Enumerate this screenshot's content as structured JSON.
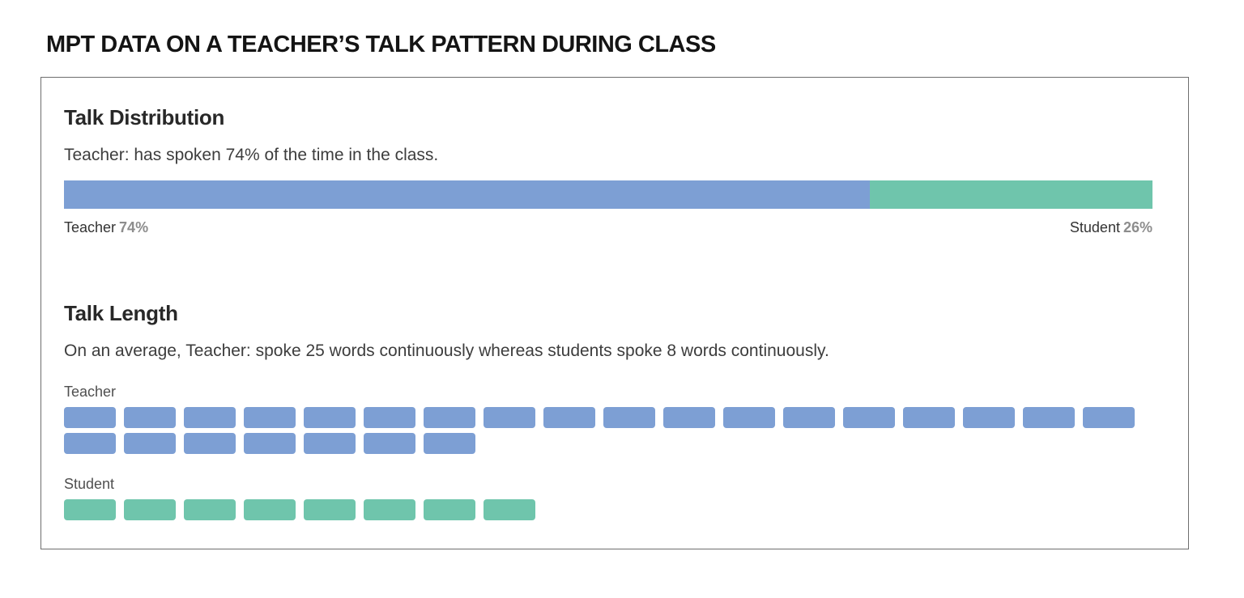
{
  "page_title": "MPT DATA ON A TEACHER’S TALK PATTERN DURING CLASS",
  "colors": {
    "teacher": "#7d9fd4",
    "student": "#6fc5ac",
    "heading_text": "#282828",
    "body_text": "#3d3d3d",
    "percent_text": "#8d8d8d",
    "card_border": "#6e6e6e"
  },
  "talk_distribution": {
    "heading": "Talk Distribution",
    "summary": "Teacher: has spoken 74% of the time in the class.",
    "teacher_label": "Teacher",
    "teacher_percent": "74%",
    "teacher_value": 74,
    "student_label": "Student",
    "student_percent": "26%",
    "student_value": 26
  },
  "talk_length": {
    "heading": "Talk Length",
    "summary": "On an average, Teacher: spoke 25 words continuously whereas students spoke 8 words continuously.",
    "teacher_label": "Teacher",
    "teacher_words": 25,
    "teacher_row1_count": 18,
    "teacher_row2_count": 7,
    "student_label": "Student",
    "student_words": 8,
    "student_row_count": 8
  },
  "chart_data": [
    {
      "type": "bar",
      "subtype": "horizontal-stacked-percentage",
      "title": "Talk Distribution",
      "categories": [
        "Teacher",
        "Student"
      ],
      "values": [
        74,
        26
      ],
      "unit": "%",
      "colors": [
        "#7d9fd4",
        "#6fc5ac"
      ],
      "annotations": [
        "Teacher 74%",
        "Student 26%"
      ],
      "xlim": [
        0,
        100
      ],
      "legend_position": "below-bar-ends"
    },
    {
      "type": "bar",
      "subtype": "unit-block-waffle",
      "title": "Talk Length",
      "categories": [
        "Teacher",
        "Student"
      ],
      "values": [
        25,
        8
      ],
      "unit": "average words spoken continuously",
      "colors": [
        "#7d9fd4",
        "#6fc5ac"
      ],
      "layout": {
        "teacher_rows": [
          18,
          7
        ],
        "student_rows": [
          8
        ],
        "blocks_per_row_max": 18
      }
    }
  ]
}
